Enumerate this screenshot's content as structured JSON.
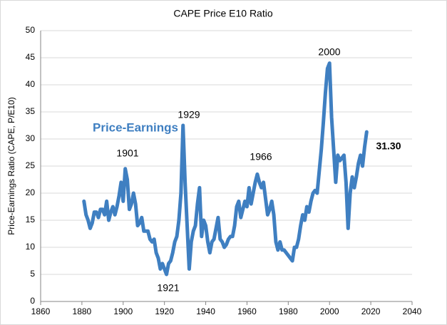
{
  "chart_data": {
    "type": "line",
    "title": "CAPE Price E10 Ratio",
    "y_label": "Price-Earnings Ratio (CAPE, P/E10)",
    "annotations": [
      "Price-Earnings",
      "1901",
      "1929",
      "1921",
      "1966",
      "2000",
      "31.30"
    ],
    "xlim": [
      1860,
      2040
    ],
    "xticks": [
      1860,
      1880,
      1900,
      1920,
      1940,
      1960,
      1980,
      2000,
      2020,
      2040
    ],
    "ylim": [
      0,
      50
    ],
    "yticks": [
      0,
      5,
      10,
      15,
      20,
      25,
      30,
      35,
      40,
      45,
      50
    ],
    "grid": true,
    "series": [
      {
        "name": "Price-Earnings",
        "color": "#3f7fc1",
        "x": [
          1881,
          1882,
          1883,
          1884,
          1885,
          1886,
          1887,
          1888,
          1889,
          1890,
          1891,
          1892,
          1893,
          1894,
          1895,
          1896,
          1897,
          1898,
          1899,
          1900,
          1901,
          1902,
          1903,
          1904,
          1905,
          1906,
          1907,
          1908,
          1909,
          1910,
          1911,
          1912,
          1913,
          1914,
          1915,
          1916,
          1917,
          1918,
          1919,
          1920,
          1921,
          1922,
          1923,
          1924,
          1925,
          1926,
          1927,
          1928,
          1929,
          1930,
          1931,
          1932,
          1933,
          1934,
          1935,
          1936,
          1937,
          1938,
          1939,
          1940,
          1941,
          1942,
          1943,
          1944,
          1945,
          1946,
          1947,
          1948,
          1949,
          1950,
          1951,
          1952,
          1953,
          1954,
          1955,
          1956,
          1957,
          1958,
          1959,
          1960,
          1961,
          1962,
          1963,
          1964,
          1965,
          1966,
          1967,
          1968,
          1969,
          1970,
          1971,
          1972,
          1973,
          1974,
          1975,
          1976,
          1977,
          1978,
          1979,
          1980,
          1981,
          1982,
          1983,
          1984,
          1985,
          1986,
          1987,
          1988,
          1989,
          1990,
          1991,
          1992,
          1993,
          1994,
          1995,
          1996,
          1997,
          1998,
          1999,
          2000,
          2001,
          2002,
          2003,
          2004,
          2005,
          2006,
          2007,
          2008,
          2009,
          2010,
          2011,
          2012,
          2013,
          2014,
          2015,
          2016,
          2017,
          2018
        ],
        "values": [
          18.5,
          16,
          15,
          13.5,
          14.5,
          16.5,
          16.5,
          15.5,
          17,
          17,
          16,
          18.5,
          15,
          16.5,
          17.5,
          16,
          17.5,
          19.5,
          22,
          18.5,
          24.5,
          22.5,
          17,
          18,
          20,
          18,
          14,
          14.5,
          15.5,
          13,
          13,
          13,
          11.5,
          11,
          11.5,
          9,
          8,
          6,
          7,
          6,
          5,
          7,
          7.5,
          9,
          11,
          12,
          15,
          20,
          32.5,
          22,
          14,
          6,
          11,
          13,
          14,
          18,
          21,
          12,
          15,
          14,
          11,
          9,
          11,
          11.5,
          13.5,
          15.5,
          11.5,
          11,
          10,
          10.5,
          11.5,
          12,
          12,
          14,
          17.5,
          18.5,
          15.5,
          17,
          18.5,
          17.5,
          21,
          18,
          20,
          22,
          23.5,
          22,
          21,
          22,
          19,
          16,
          17,
          18.5,
          16,
          11,
          9.5,
          11,
          9.5,
          9.5,
          9,
          8.5,
          8,
          7.5,
          10,
          10,
          11.5,
          14,
          16,
          15,
          17.5,
          16.5,
          18.5,
          20,
          20.5,
          20,
          24,
          28,
          33,
          38.5,
          43,
          44,
          34,
          28,
          22,
          27,
          26,
          26.5,
          27,
          22,
          13.5,
          20,
          23,
          21,
          23,
          25.5,
          27,
          25,
          28.5,
          31.3
        ]
      }
    ]
  }
}
